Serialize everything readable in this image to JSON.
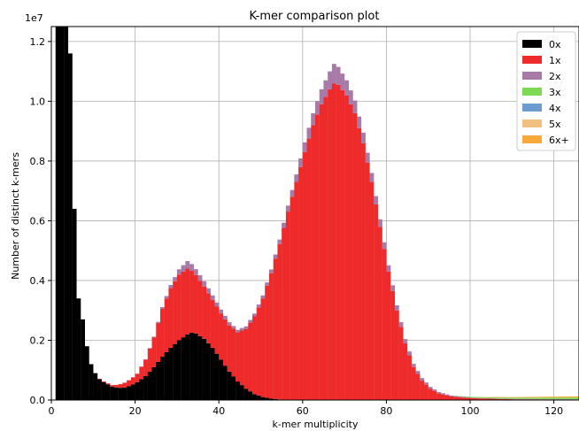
{
  "chart_data": {
    "type": "histogram",
    "title": "K-mer comparison plot",
    "xlabel": "k-mer multiplicity",
    "ylabel": "Number of distinct k-mers",
    "y_offset_label": "1e7",
    "xlim": [
      0,
      126
    ],
    "ylim": [
      0,
      12500000
    ],
    "xticks": [
      0,
      20,
      40,
      60,
      80,
      100,
      120
    ],
    "yticks": [
      0,
      2000000,
      4000000,
      6000000,
      8000000,
      10000000,
      12000000
    ],
    "ytick_labels": [
      "0.0",
      "0.2",
      "0.4",
      "0.6",
      "0.8",
      "1.0",
      "1.2"
    ],
    "grid": true,
    "legend_position": "top-right",
    "bin_width": 1,
    "stacked": true,
    "series": [
      {
        "name": "0x",
        "color": "#000000",
        "points": [
          [
            1,
            12500000
          ],
          [
            2,
            12500000
          ],
          [
            3,
            12500000
          ],
          [
            4,
            11600000
          ],
          [
            5,
            6400000
          ],
          [
            6,
            3400000
          ],
          [
            7,
            2700000
          ],
          [
            8,
            1800000
          ],
          [
            9,
            1200000
          ],
          [
            10,
            900000
          ],
          [
            11,
            700000
          ],
          [
            12,
            600000
          ],
          [
            13,
            520000
          ],
          [
            14,
            450000
          ],
          [
            15,
            420000
          ],
          [
            16,
            410000
          ],
          [
            17,
            420000
          ],
          [
            18,
            460000
          ],
          [
            19,
            520000
          ],
          [
            20,
            600000
          ],
          [
            22,
            800000
          ],
          [
            24,
            1100000
          ],
          [
            26,
            1450000
          ],
          [
            28,
            1750000
          ],
          [
            30,
            2000000
          ],
          [
            32,
            2200000
          ],
          [
            33,
            2250000
          ],
          [
            34,
            2230000
          ],
          [
            36,
            2050000
          ],
          [
            38,
            1750000
          ],
          [
            40,
            1350000
          ],
          [
            42,
            950000
          ],
          [
            44,
            620000
          ],
          [
            46,
            380000
          ],
          [
            48,
            200000
          ],
          [
            50,
            100000
          ],
          [
            52,
            45000
          ],
          [
            55,
            10000
          ],
          [
            58,
            0
          ],
          [
            126,
            0
          ]
        ]
      },
      {
        "name": "1x",
        "color": "#ee2a2a",
        "points": [
          [
            1,
            0
          ],
          [
            10,
            0
          ],
          [
            14,
            50000
          ],
          [
            16,
            120000
          ],
          [
            18,
            200000
          ],
          [
            20,
            280000
          ],
          [
            22,
            550000
          ],
          [
            24,
            1000000
          ],
          [
            26,
            1600000
          ],
          [
            28,
            2000000
          ],
          [
            30,
            2200000
          ],
          [
            32,
            2200000
          ],
          [
            34,
            1950000
          ],
          [
            36,
            1750000
          ],
          [
            38,
            1600000
          ],
          [
            40,
            1550000
          ],
          [
            42,
            1550000
          ],
          [
            44,
            1650000
          ],
          [
            46,
            2000000
          ],
          [
            48,
            2600000
          ],
          [
            50,
            3300000
          ],
          [
            52,
            4200000
          ],
          [
            54,
            5200000
          ],
          [
            56,
            6300000
          ],
          [
            58,
            7300000
          ],
          [
            60,
            8300000
          ],
          [
            62,
            9200000
          ],
          [
            64,
            9900000
          ],
          [
            66,
            10400000
          ],
          [
            67,
            10600000
          ],
          [
            68,
            10550000
          ],
          [
            70,
            10200000
          ],
          [
            72,
            9600000
          ],
          [
            74,
            8600000
          ],
          [
            76,
            7300000
          ],
          [
            78,
            5800000
          ],
          [
            80,
            4300000
          ],
          [
            82,
            3000000
          ],
          [
            84,
            1900000
          ],
          [
            86,
            1100000
          ],
          [
            88,
            650000
          ],
          [
            90,
            380000
          ],
          [
            92,
            220000
          ],
          [
            95,
            120000
          ],
          [
            100,
            60000
          ],
          [
            110,
            25000
          ],
          [
            126,
            15000
          ]
        ]
      },
      {
        "name": "2x",
        "color": "#a87aa8",
        "points": [
          [
            1,
            0
          ],
          [
            20,
            0
          ],
          [
            24,
            20000
          ],
          [
            28,
            100000
          ],
          [
            32,
            250000
          ],
          [
            34,
            200000
          ],
          [
            38,
            150000
          ],
          [
            44,
            80000
          ],
          [
            50,
            100000
          ],
          [
            54,
            150000
          ],
          [
            58,
            250000
          ],
          [
            62,
            400000
          ],
          [
            66,
            600000
          ],
          [
            67,
            650000
          ],
          [
            70,
            500000
          ],
          [
            74,
            350000
          ],
          [
            78,
            250000
          ],
          [
            82,
            170000
          ],
          [
            86,
            110000
          ],
          [
            90,
            60000
          ],
          [
            95,
            30000
          ],
          [
            100,
            15000
          ],
          [
            126,
            10000
          ]
        ]
      },
      {
        "name": "3x",
        "color": "#7ed957",
        "points": [
          [
            1,
            0
          ],
          [
            95,
            0
          ],
          [
            100,
            30000
          ],
          [
            110,
            40000
          ],
          [
            126,
            60000
          ]
        ]
      },
      {
        "name": "4x",
        "color": "#6a9bd1",
        "points": [
          [
            1,
            0
          ],
          [
            126,
            0
          ]
        ]
      },
      {
        "name": "5x",
        "color": "#f2c07e",
        "points": [
          [
            1,
            0
          ],
          [
            126,
            0
          ]
        ]
      },
      {
        "name": "6x+",
        "color": "#f9a83a",
        "points": [
          [
            1,
            0
          ],
          [
            100,
            0
          ],
          [
            110,
            20000
          ],
          [
            126,
            40000
          ]
        ]
      }
    ]
  }
}
